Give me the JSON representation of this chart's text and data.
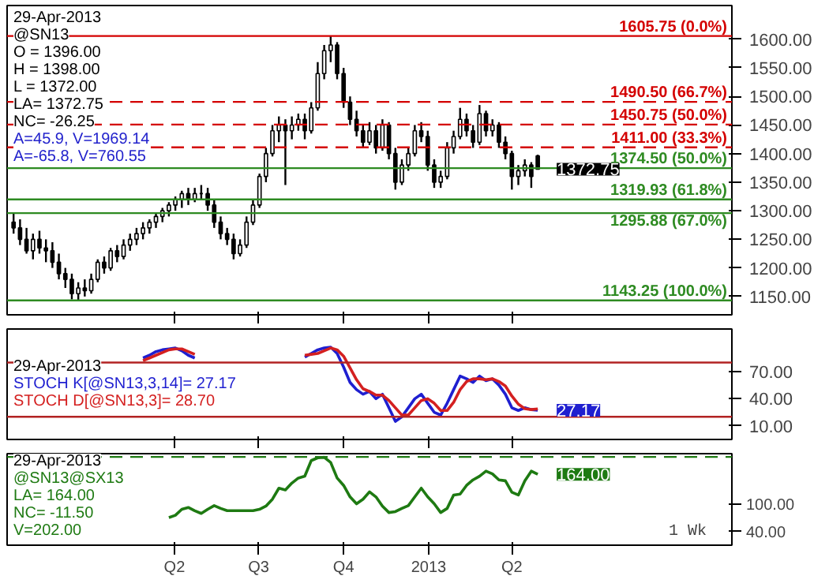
{
  "chart_data": [
    {
      "type": "candlestick",
      "x": [
        "2011-10-10",
        "2011-10-17",
        "2011-10-24",
        "2011-10-31",
        "2011-11-07",
        "2011-11-14",
        "2011-11-21",
        "2011-11-28",
        "2011-12-05",
        "2011-12-12",
        "2011-12-19",
        "2011-12-26",
        "2012-01-02",
        "2012-01-09",
        "2012-01-16",
        "2012-01-23",
        "2012-01-30",
        "2012-02-06",
        "2012-02-13",
        "2012-02-20",
        "2012-02-27",
        "2012-03-05",
        "2012-03-12",
        "2012-03-19",
        "2012-03-26",
        "2012-04-02",
        "2012-04-09",
        "2012-04-16",
        "2012-04-23",
        "2012-04-30",
        "2012-05-07",
        "2012-05-14",
        "2012-05-21",
        "2012-05-28",
        "2012-06-04",
        "2012-06-11",
        "2012-06-18",
        "2012-06-25",
        "2012-07-02",
        "2012-07-09",
        "2012-07-16",
        "2012-07-23",
        "2012-07-30",
        "2012-08-06",
        "2012-08-13",
        "2012-08-20",
        "2012-08-27",
        "2012-09-03",
        "2012-09-10",
        "2012-09-17",
        "2012-09-24",
        "2012-10-01",
        "2012-10-08",
        "2012-10-15",
        "2012-10-22",
        "2012-10-29",
        "2012-11-05",
        "2012-11-12",
        "2012-11-19",
        "2012-11-26",
        "2012-12-03",
        "2012-12-10",
        "2012-12-17",
        "2012-12-24",
        "2012-12-31",
        "2013-01-07",
        "2013-01-14",
        "2013-01-21",
        "2013-01-28",
        "2013-02-04",
        "2013-02-11",
        "2013-02-18",
        "2013-02-25",
        "2013-03-04",
        "2013-03-11",
        "2013-03-18",
        "2013-03-25",
        "2013-04-01",
        "2013-04-08",
        "2013-04-15",
        "2013-04-22",
        "2013-04-29"
      ],
      "ohlc": [
        [
          1280,
          1295,
          1260,
          1270
        ],
        [
          1270,
          1285,
          1240,
          1250
        ],
        [
          1250,
          1270,
          1225,
          1230
        ],
        [
          1230,
          1260,
          1215,
          1250
        ],
        [
          1250,
          1265,
          1225,
          1235
        ],
        [
          1235,
          1250,
          1210,
          1230
        ],
        [
          1230,
          1245,
          1200,
          1210
        ],
        [
          1210,
          1225,
          1180,
          1190
        ],
        [
          1190,
          1200,
          1165,
          1180
        ],
        [
          1180,
          1190,
          1145,
          1155
        ],
        [
          1155,
          1175,
          1143.25,
          1165
        ],
        [
          1165,
          1180,
          1150,
          1160
        ],
        [
          1160,
          1190,
          1155,
          1180
        ],
        [
          1180,
          1215,
          1175,
          1210
        ],
        [
          1210,
          1220,
          1190,
          1200
        ],
        [
          1200,
          1235,
          1195,
          1230
        ],
        [
          1230,
          1240,
          1210,
          1220
        ],
        [
          1220,
          1250,
          1215,
          1240
        ],
        [
          1240,
          1260,
          1230,
          1250
        ],
        [
          1250,
          1270,
          1240,
          1260
        ],
        [
          1260,
          1280,
          1250,
          1270
        ],
        [
          1270,
          1285,
          1260,
          1280
        ],
        [
          1280,
          1295,
          1270,
          1290
        ],
        [
          1290,
          1305,
          1280,
          1300
        ],
        [
          1300,
          1315,
          1290,
          1310
        ],
        [
          1310,
          1325,
          1300,
          1320
        ],
        [
          1320,
          1335,
          1305,
          1330
        ],
        [
          1330,
          1340,
          1310,
          1320
        ],
        [
          1320,
          1340,
          1315,
          1330
        ],
        [
          1330,
          1345,
          1320,
          1330
        ],
        [
          1330,
          1340,
          1300,
          1310
        ],
        [
          1310,
          1320,
          1270,
          1280
        ],
        [
          1280,
          1290,
          1250,
          1260
        ],
        [
          1260,
          1270,
          1240,
          1250
        ],
        [
          1250,
          1260,
          1215,
          1225
        ],
        [
          1225,
          1250,
          1220,
          1240
        ],
        [
          1240,
          1290,
          1235,
          1280
        ],
        [
          1280,
          1320,
          1275,
          1310
        ],
        [
          1310,
          1365,
          1305,
          1360
        ],
        [
          1360,
          1410,
          1350,
          1400
        ],
        [
          1400,
          1450,
          1395,
          1440
        ],
        [
          1440,
          1465,
          1420,
          1450
        ],
        [
          1450,
          1460,
          1345,
          1440
        ],
        [
          1440,
          1465,
          1425,
          1450
        ],
        [
          1450,
          1470,
          1440,
          1460
        ],
        [
          1460,
          1470,
          1425,
          1440
        ],
        [
          1440,
          1490,
          1435,
          1480
        ],
        [
          1480,
          1560,
          1475,
          1540
        ],
        [
          1540,
          1590,
          1530,
          1580
        ],
        [
          1580,
          1605.75,
          1560,
          1590
        ],
        [
          1590,
          1595,
          1530,
          1540
        ],
        [
          1540,
          1550,
          1480,
          1490
        ],
        [
          1490,
          1500,
          1450,
          1460
        ],
        [
          1460,
          1475,
          1430,
          1440
        ],
        [
          1440,
          1450,
          1410,
          1420
        ],
        [
          1420,
          1455,
          1415,
          1440
        ],
        [
          1440,
          1450,
          1400,
          1410
        ],
        [
          1410,
          1460,
          1405,
          1450
        ],
        [
          1450,
          1455,
          1390,
          1400
        ],
        [
          1400,
          1410,
          1337,
          1350
        ],
        [
          1350,
          1390,
          1345,
          1380
        ],
        [
          1380,
          1410,
          1370,
          1400
        ],
        [
          1400,
          1450,
          1395,
          1440
        ],
        [
          1440,
          1455,
          1420,
          1430
        ],
        [
          1430,
          1440,
          1370,
          1380
        ],
        [
          1380,
          1390,
          1340,
          1350
        ],
        [
          1350,
          1370,
          1340,
          1360
        ],
        [
          1360,
          1420,
          1355,
          1410
        ],
        [
          1410,
          1440,
          1400,
          1430
        ],
        [
          1430,
          1480,
          1425,
          1460
        ],
        [
          1460,
          1470,
          1430,
          1440
        ],
        [
          1440,
          1450,
          1410,
          1420
        ],
        [
          1420,
          1485,
          1415,
          1470
        ],
        [
          1470,
          1475,
          1430,
          1440
        ],
        [
          1440,
          1460,
          1430,
          1450
        ],
        [
          1450,
          1455,
          1410,
          1420
        ],
        [
          1420,
          1430,
          1390,
          1400
        ],
        [
          1400,
          1405,
          1337,
          1360
        ],
        [
          1360,
          1380,
          1345,
          1370
        ],
        [
          1370,
          1390,
          1360,
          1380
        ],
        [
          1380,
          1385,
          1340,
          1360
        ],
        [
          1396,
          1398,
          1372,
          1372.75
        ]
      ],
      "xlim": [
        "2011-10-03",
        "2013-11-25"
      ],
      "ylim": [
        1118,
        1659
      ],
      "xticks": [
        {
          "value": "2012-04-01",
          "label": null
        },
        {
          "value": "2012-07-01",
          "label": null
        },
        {
          "value": "2012-10-01",
          "label": null
        },
        {
          "value": "2013-01-01",
          "label": null
        },
        {
          "value": "2013-04-01",
          "label": null
        }
      ],
      "yticks": [
        {
          "value": 1150,
          "label": "1150.00"
        },
        {
          "value": 1200,
          "label": "1200.00"
        },
        {
          "value": 1250,
          "label": "1250.00"
        },
        {
          "value": 1300,
          "label": "1300.00"
        },
        {
          "value": 1350,
          "label": "1350.00"
        },
        {
          "value": 1400,
          "label": "1400.00"
        },
        {
          "value": 1450,
          "label": "1450.00"
        },
        {
          "value": 1500,
          "label": "1500.00"
        },
        {
          "value": 1550,
          "label": "1550.00"
        },
        {
          "value": 1600,
          "label": "1600.00"
        }
      ],
      "tick_labels": "y",
      "ref_lines": [
        {
          "axis": "y",
          "value": 1605.75,
          "label": "1605.75 (0.0%)",
          "color": "#d40000",
          "line_style": "solid"
        },
        {
          "axis": "y",
          "value": 1490.5,
          "label": "1490.50 (66.7%)",
          "color": "#d40000",
          "line_style": "dashed"
        },
        {
          "axis": "y",
          "value": 1450.75,
          "label": "1450.75 (50.0%)",
          "color": "#d40000",
          "line_style": "dashed"
        },
        {
          "axis": "y",
          "value": 1411,
          "label": "1411.00 (33.3%)",
          "color": "#d40000",
          "line_style": "dashed"
        },
        {
          "axis": "y",
          "value": 1374.5,
          "label": "1374.50 (50.0%)",
          "color": "#2e8b22",
          "line_style": "solid"
        },
        {
          "axis": "y",
          "value": 1319.93,
          "label": "1319.93 (61.8%)",
          "color": "#2e8b22",
          "line_style": "solid"
        },
        {
          "axis": "y",
          "value": 1295.88,
          "label": "1295.88 (67.0%)",
          "color": "#2e8b22",
          "line_style": "solid"
        },
        {
          "axis": "y",
          "value": 1143.25,
          "label": "1143.25 (100.0%)",
          "color": "#2e8b22",
          "line_style": "solid"
        }
      ],
      "annotations": [
        "29-Apr-2013",
        "@SN13",
        "O = 1396.00",
        "H = 1398.00",
        "L = 1372.00",
        "LA= 1372.75",
        "NC= -26.25",
        "A=45.9, V=1969.14",
        "A=-65.8, V=760.55",
        {
          "text": "1372.75",
          "x": "2013-04-29",
          "y": 1372.75
        }
      ]
    },
    {
      "type": "line",
      "series": [
        {
          "name": "STOCH K[@SN13,3,14]= 27.17",
          "color": "#1f1fd0",
          "x": [
            "2012-02-27",
            "2012-03-05",
            "2012-03-12",
            "2012-03-19",
            "2012-03-26",
            "2012-04-02",
            "2012-04-09",
            "2012-04-16",
            "2012-04-23",
            "2012-04-30",
            "2012-05-07",
            "2012-05-14",
            "2012-05-21",
            "2012-05-28",
            "2012-06-04",
            "2012-06-11",
            "2012-06-18",
            "2012-06-25",
            "2012-07-02",
            "2012-07-09",
            "2012-07-16",
            "2012-07-23",
            "2012-07-30",
            "2012-08-06",
            "2012-08-13",
            "2012-08-20",
            "2012-08-27",
            "2012-09-03",
            "2012-09-10",
            "2012-09-17",
            "2012-09-24",
            "2012-10-01",
            "2012-10-08",
            "2012-10-15",
            "2012-10-22",
            "2012-10-29",
            "2012-11-05",
            "2012-11-12",
            "2012-11-19",
            "2012-11-26",
            "2012-12-03",
            "2012-12-10",
            "2012-12-17",
            "2012-12-24",
            "2012-12-31",
            "2013-01-07",
            "2013-01-14",
            "2013-01-21",
            "2013-01-28",
            "2013-02-04",
            "2013-02-11",
            "2013-02-18",
            "2013-02-25",
            "2013-03-04",
            "2013-03-11",
            "2013-03-18",
            "2013-03-25",
            "2013-04-01",
            "2013-04-08",
            "2013-04-15",
            "2013-04-22",
            "2013-04-29"
          ],
          "values": [
            85,
            88,
            92,
            94,
            95,
            96,
            93,
            88,
            85,
            null,
            null,
            null,
            null,
            null,
            null,
            null,
            null,
            null,
            null,
            null,
            null,
            null,
            null,
            null,
            null,
            86,
            90,
            94,
            96,
            97,
            90,
            75,
            58,
            50,
            45,
            48,
            40,
            45,
            30,
            15,
            20,
            30,
            40,
            45,
            35,
            25,
            22,
            35,
            50,
            65,
            62,
            58,
            65,
            60,
            62,
            55,
            45,
            30,
            27,
            30,
            28,
            27.17
          ]
        },
        {
          "name": "STOCH D[@SN13,3]= 28.70",
          "color": "#d42020",
          "x": [
            "2012-02-27",
            "2012-03-05",
            "2012-03-12",
            "2012-03-19",
            "2012-03-26",
            "2012-04-02",
            "2012-04-09",
            "2012-04-16",
            "2012-04-23",
            "2012-04-30",
            "2012-05-07",
            "2012-05-14",
            "2012-05-21",
            "2012-05-28",
            "2012-06-04",
            "2012-06-11",
            "2012-06-18",
            "2012-06-25",
            "2012-07-02",
            "2012-07-09",
            "2012-07-16",
            "2012-07-23",
            "2012-07-30",
            "2012-08-06",
            "2012-08-13",
            "2012-08-20",
            "2012-08-27",
            "2012-09-03",
            "2012-09-10",
            "2012-09-17",
            "2012-09-24",
            "2012-10-01",
            "2012-10-08",
            "2012-10-15",
            "2012-10-22",
            "2012-10-29",
            "2012-11-05",
            "2012-11-12",
            "2012-11-19",
            "2012-11-26",
            "2012-12-03",
            "2012-12-10",
            "2012-12-17",
            "2012-12-24",
            "2012-12-31",
            "2013-01-07",
            "2013-01-14",
            "2013-01-21",
            "2013-01-28",
            "2013-02-04",
            "2013-02-11",
            "2013-02-18",
            "2013-02-25",
            "2013-03-04",
            "2013-03-11",
            "2013-03-18",
            "2013-03-25",
            "2013-04-01",
            "2013-04-08",
            "2013-04-15",
            "2013-04-22",
            "2013-04-29"
          ],
          "values": [
            82,
            85,
            88,
            91,
            94,
            95,
            95,
            92,
            89,
            null,
            null,
            null,
            null,
            null,
            null,
            null,
            null,
            null,
            null,
            null,
            null,
            null,
            null,
            null,
            null,
            88,
            89,
            90,
            93,
            96,
            94,
            87,
            74,
            61,
            51,
            48,
            44,
            44,
            38,
            30,
            22,
            22,
            30,
            38,
            40,
            35,
            27,
            27,
            36,
            50,
            59,
            62,
            62,
            61,
            62,
            59,
            54,
            43,
            34,
            29,
            28,
            28.7
          ]
        }
      ],
      "xlim": [
        "2011-10-03",
        "2013-11-25"
      ],
      "ylim": [
        -5,
        117
      ],
      "xticks": [
        {
          "value": "2012-04-01",
          "label": null
        },
        {
          "value": "2012-07-01",
          "label": null
        },
        {
          "value": "2012-10-01",
          "label": null
        },
        {
          "value": "2013-01-01",
          "label": null
        },
        {
          "value": "2013-04-01",
          "label": null
        }
      ],
      "yticks": [
        {
          "value": 10,
          "label": "10.00"
        },
        {
          "value": 40,
          "label": "40.00"
        },
        {
          "value": 70,
          "label": "70.00"
        }
      ],
      "tick_labels": "y",
      "ref_lines": [
        {
          "axis": "y",
          "value": 80,
          "color": "#b22222",
          "line_style": "solid"
        },
        {
          "axis": "y",
          "value": 20,
          "color": "#b22222",
          "line_style": "solid"
        }
      ],
      "annotations": [
        "29-Apr-2013",
        {
          "text": "27.17",
          "x": "2013-04-29",
          "y": 27.17
        }
      ]
    },
    {
      "type": "line",
      "series": [
        {
          "name": "@SN13@SX13",
          "color": "#1e7a12",
          "x": [
            "2012-03-26",
            "2012-04-02",
            "2012-04-09",
            "2012-04-16",
            "2012-04-23",
            "2012-04-30",
            "2012-05-07",
            "2012-05-14",
            "2012-05-21",
            "2012-05-28",
            "2012-06-04",
            "2012-06-11",
            "2012-06-18",
            "2012-06-25",
            "2012-07-02",
            "2012-07-09",
            "2012-07-16",
            "2012-07-23",
            "2012-07-30",
            "2012-08-06",
            "2012-08-13",
            "2012-08-20",
            "2012-08-27",
            "2012-09-03",
            "2012-09-10",
            "2012-09-17",
            "2012-09-24",
            "2012-10-01",
            "2012-10-08",
            "2012-10-15",
            "2012-10-22",
            "2012-10-29",
            "2012-11-05",
            "2012-11-12",
            "2012-11-19",
            "2012-11-26",
            "2012-12-03",
            "2012-12-10",
            "2012-12-17",
            "2012-12-24",
            "2012-12-31",
            "2013-01-07",
            "2013-01-14",
            "2013-01-21",
            "2013-01-28",
            "2013-02-04",
            "2013-02-11",
            "2013-02-18",
            "2013-02-25",
            "2013-03-04",
            "2013-03-11",
            "2013-03-18",
            "2013-03-25",
            "2013-04-01",
            "2013-04-08",
            "2013-04-15",
            "2013-04-22",
            "2013-04-29"
          ],
          "values": [
            70,
            75,
            88,
            92,
            85,
            79,
            88,
            96,
            90,
            85,
            85,
            85,
            85,
            85,
            88,
            95,
            110,
            134,
            130,
            145,
            156,
            160,
            194,
            200,
            201,
            190,
            156,
            140,
            115,
            100,
            110,
            126,
            115,
            95,
            81,
            83,
            90,
            96,
            115,
            134,
            115,
            100,
            81,
            90,
            119,
            121,
            140,
            152,
            160,
            171,
            165,
            152,
            150,
            125,
            119,
            150,
            171,
            164
          ]
        }
      ],
      "xlim": [
        "2011-10-03",
        "2013-11-25"
      ],
      "ylim": [
        10,
        209
      ],
      "xticks": [
        {
          "value": "2012-04-01",
          "label": "Q2"
        },
        {
          "value": "2012-07-01",
          "label": "Q3"
        },
        {
          "value": "2012-10-01",
          "label": "Q4"
        },
        {
          "value": "2013-01-01",
          "label": "2013"
        },
        {
          "value": "2013-04-01",
          "label": "Q2"
        }
      ],
      "yticks": [
        {
          "value": 40,
          "label": "40.00"
        },
        {
          "value": 100,
          "label": "100.00"
        }
      ],
      "xlabel": "1 Wk",
      "ref_lines": [
        {
          "axis": "y",
          "value": 202,
          "color": "#1e7a12",
          "line_style": "dashed"
        }
      ],
      "annotations": [
        "29-Apr-2013",
        "LA= 164.00",
        "NC= -11.50",
        "V=202.00",
        {
          "text": "164.00",
          "x": "2013-04-29",
          "y": 164
        }
      ]
    }
  ]
}
